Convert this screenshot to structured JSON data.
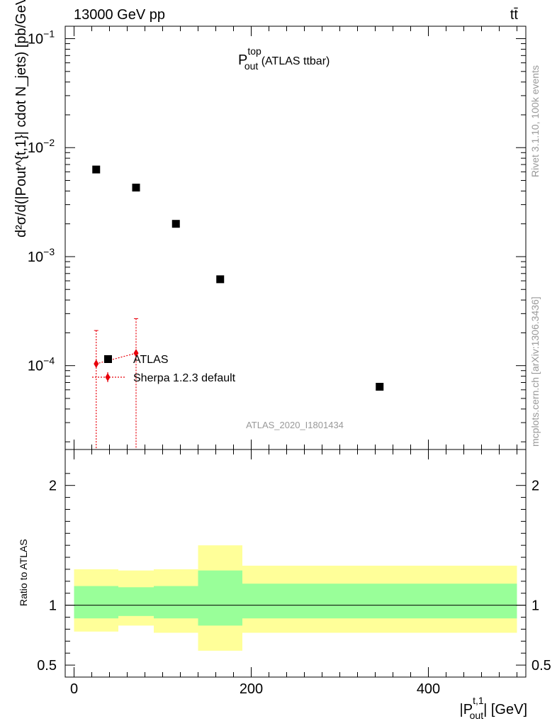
{
  "header": {
    "energy_label": "13000 GeV pp",
    "process_label": "tt̄"
  },
  "main_title": {
    "base": "P",
    "sup": "top",
    "sub": "out",
    "rest": " (ATLAS ttbar)"
  },
  "y_label_main": "d²σ/d(|Pout^{t,1}| cdot N_jets) [pb/GeV]",
  "y_label_ratio": "Ratio to ATLAS",
  "x_label": {
    "base": "|P",
    "sup": "t,1",
    "sub": "out",
    "rest": "| [GeV]"
  },
  "side_labels": {
    "rivet": "Rivet 3.1.10,  100k events",
    "mcplots": "mcplots.cern.ch [arXiv:1306.3436]"
  },
  "watermark": "ATLAS_2020_I1801434",
  "legend": {
    "atlas": "ATLAS",
    "sherpa": "Sherpa 1.2.3 default"
  },
  "colors": {
    "data_marker": "#000000",
    "mc_line": "#e8000b",
    "band_inner": "#99ff99",
    "band_outer": "#ffff99",
    "side_text": "#999999"
  },
  "chart_data": [
    {
      "type": "scatter",
      "panel": "main",
      "log_y": true,
      "xlim": [
        -10,
        510
      ],
      "ylim": [
        1.7e-05,
        0.13
      ],
      "y_ticks": [
        "10^{-4}",
        "10^{-3}",
        "10^{-2}",
        "10^{-1}"
      ],
      "series": [
        {
          "name": "ATLAS",
          "points": [
            {
              "x": 25,
              "y": 0.0063
            },
            {
              "x": 70,
              "y": 0.0043
            },
            {
              "x": 115,
              "y": 0.002
            },
            {
              "x": 165,
              "y": 0.00062
            },
            {
              "x": 345,
              "y": 6.4e-05
            }
          ]
        },
        {
          "name": "Sherpa 1.2.3 default",
          "points": [
            {
              "x": 25,
              "y": 0.000104,
              "ylow": 1.7e-05,
              "yhigh": 0.00021
            },
            {
              "x": 70,
              "y": 0.00013,
              "ylow": 1.7e-05,
              "yhigh": 0.00027
            }
          ]
        }
      ]
    },
    {
      "type": "area",
      "panel": "ratio",
      "xlim": [
        -10,
        510
      ],
      "ylim": [
        0.4,
        2.3
      ],
      "x_ticks": [
        0,
        200,
        400
      ],
      "y_ticks": [
        0.5,
        1,
        2
      ],
      "reference_line": 1,
      "bins": [
        {
          "x0": 0,
          "x1": 50,
          "inner": [
            0.89,
            1.16
          ],
          "outer": [
            0.78,
            1.3
          ]
        },
        {
          "x0": 50,
          "x1": 90,
          "inner": [
            0.91,
            1.15
          ],
          "outer": [
            0.83,
            1.29
          ]
        },
        {
          "x0": 90,
          "x1": 140,
          "inner": [
            0.89,
            1.16
          ],
          "outer": [
            0.77,
            1.3
          ]
        },
        {
          "x0": 140,
          "x1": 190,
          "inner": [
            0.83,
            1.29
          ],
          "outer": [
            0.62,
            1.5
          ]
        },
        {
          "x0": 190,
          "x1": 500,
          "inner": [
            0.89,
            1.18
          ],
          "outer": [
            0.77,
            1.33
          ]
        }
      ]
    }
  ]
}
